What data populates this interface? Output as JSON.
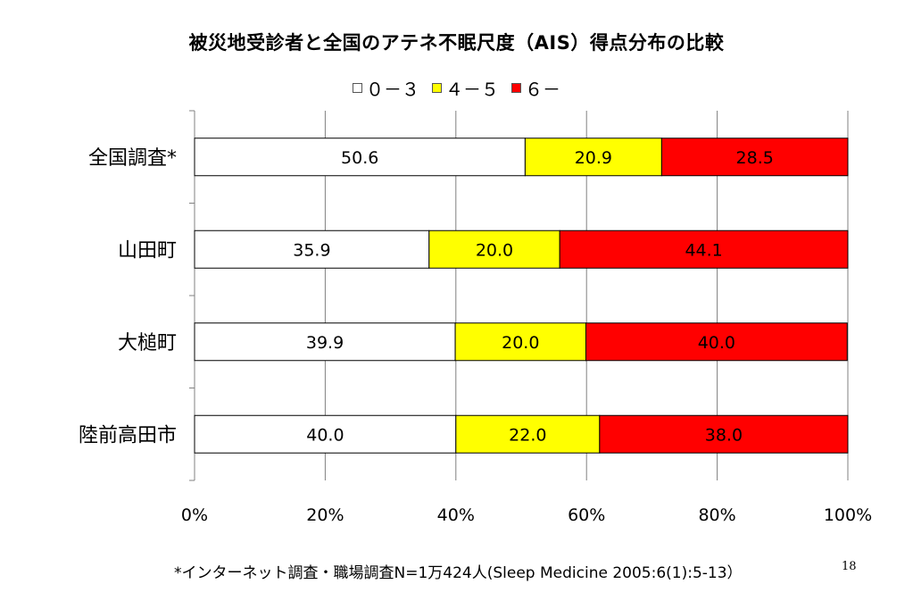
{
  "title": "被災地受診者と全国のアテネ不眠尺度（AIS）得点分布の比較",
  "footnote": "*インターネット調査・職場調査N=1万424人(Sleep Medicine 2005:6(1):5-13）",
  "page_number": "18",
  "colors": {
    "s0": "#ffffff",
    "s1": "#ffff00",
    "s2": "#ff0000",
    "grid": "#808080",
    "border": "#000000"
  },
  "chart_data": {
    "type": "bar",
    "orientation": "horizontal",
    "stacked": "percent",
    "categories": [
      "全国調査*",
      "山田町",
      "大槌町",
      "陸前高田市"
    ],
    "series": [
      {
        "name": "０－３",
        "color": "#ffffff",
        "values": [
          50.6,
          35.9,
          39.9,
          40.0
        ],
        "labels": [
          "50.6",
          "35.9",
          "39.9",
          "40.0"
        ]
      },
      {
        "name": "４－５",
        "color": "#ffff00",
        "values": [
          20.9,
          20.0,
          20.0,
          22.0
        ],
        "labels": [
          "20.9",
          "20.0",
          "20.0",
          "22.0"
        ]
      },
      {
        "name": "６－",
        "color": "#ff0000",
        "values": [
          28.5,
          44.1,
          40.0,
          38.0
        ],
        "labels": [
          "28.5",
          "44.1",
          "40.0",
          "38.0"
        ]
      }
    ],
    "xlim": [
      0,
      100
    ],
    "xticks": [
      "0%",
      "20%",
      "40%",
      "60%",
      "80%",
      "100%"
    ],
    "grid": "vertical",
    "legend": "top"
  }
}
